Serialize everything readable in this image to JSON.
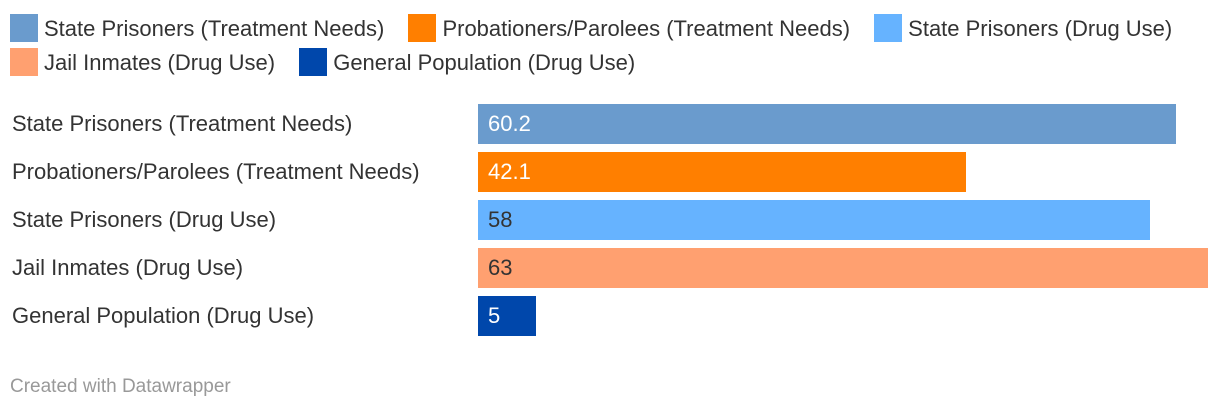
{
  "legend": [
    {
      "label": "State Prisoners (Treatment Needs)",
      "color": "#6a9bcd"
    },
    {
      "label": "Probationers/Parolees (Treatment Needs)",
      "color": "#ff7f00"
    },
    {
      "label": "State Prisoners (Drug Use)",
      "color": "#66b3ff"
    },
    {
      "label": "Jail Inmates (Drug Use)",
      "color": "#ffa070"
    },
    {
      "label": "General Population (Drug Use)",
      "color": "#0047ab"
    }
  ],
  "chart_data": {
    "type": "bar",
    "orientation": "horizontal",
    "categories": [
      "State Prisoners (Treatment Needs)",
      "Probationers/Parolees (Treatment Needs)",
      "State Prisoners (Drug Use)",
      "Jail Inmates (Drug Use)",
      "General Population (Drug Use)"
    ],
    "values": [
      60.2,
      42.1,
      58,
      63,
      5
    ],
    "value_labels": [
      "60.2",
      "42.1",
      "58",
      "63",
      "5"
    ],
    "colors": [
      "#6a9bcd",
      "#ff7f00",
      "#66b3ff",
      "#ffa070",
      "#0047ab"
    ],
    "label_colors": [
      "#ffffff",
      "#ffffff",
      "#333333",
      "#333333",
      "#ffffff"
    ],
    "xlim": [
      0,
      63
    ],
    "legend_position": "top",
    "grid": false
  },
  "footer": {
    "credit": "Created with Datawrapper"
  }
}
